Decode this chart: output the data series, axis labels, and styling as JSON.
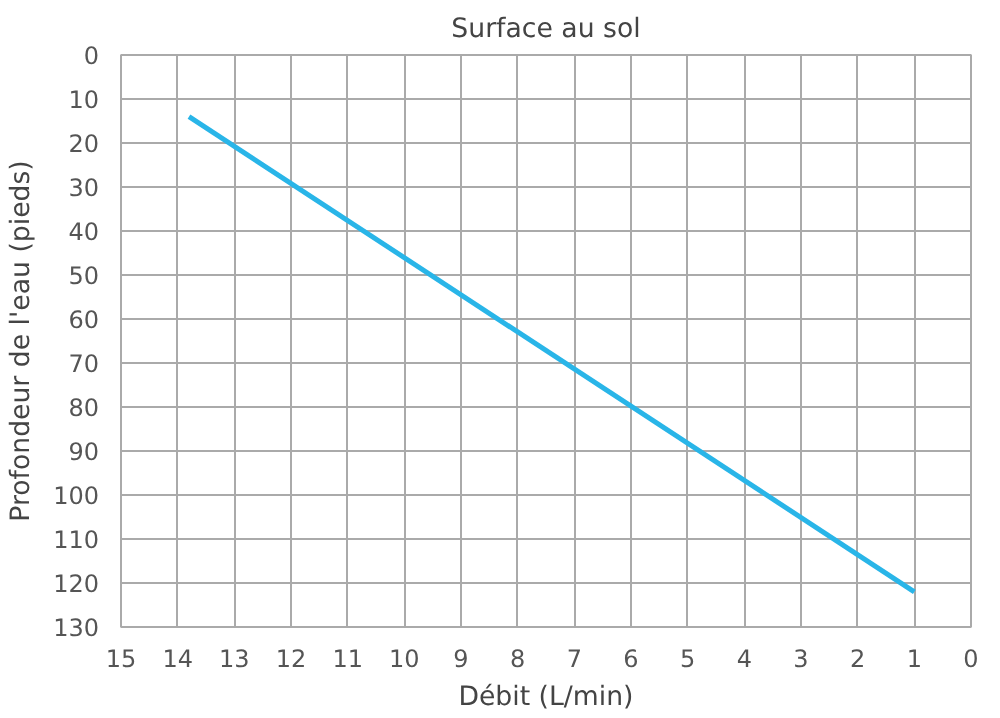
{
  "chart_data": {
    "type": "line",
    "title": "Surface au sol",
    "xlabel": "Débit (L/min)",
    "ylabel": "Profondeur de l'eau (pieds)",
    "series": [
      {
        "color": "#29b5e8",
        "x": [
          13.8,
          1
        ],
        "values": [
          14,
          122
        ]
      }
    ],
    "xlim": [
      15,
      0
    ],
    "xticks": [
      15,
      14,
      13,
      12,
      11,
      10,
      9,
      8,
      7,
      6,
      5,
      4,
      3,
      2,
      1,
      0
    ],
    "ylim": [
      130,
      0
    ],
    "yticks": [
      0,
      10,
      20,
      30,
      40,
      50,
      60,
      70,
      80,
      90,
      100,
      110,
      120,
      130
    ],
    "grid": true,
    "marker": "none",
    "line_style": "solid"
  }
}
